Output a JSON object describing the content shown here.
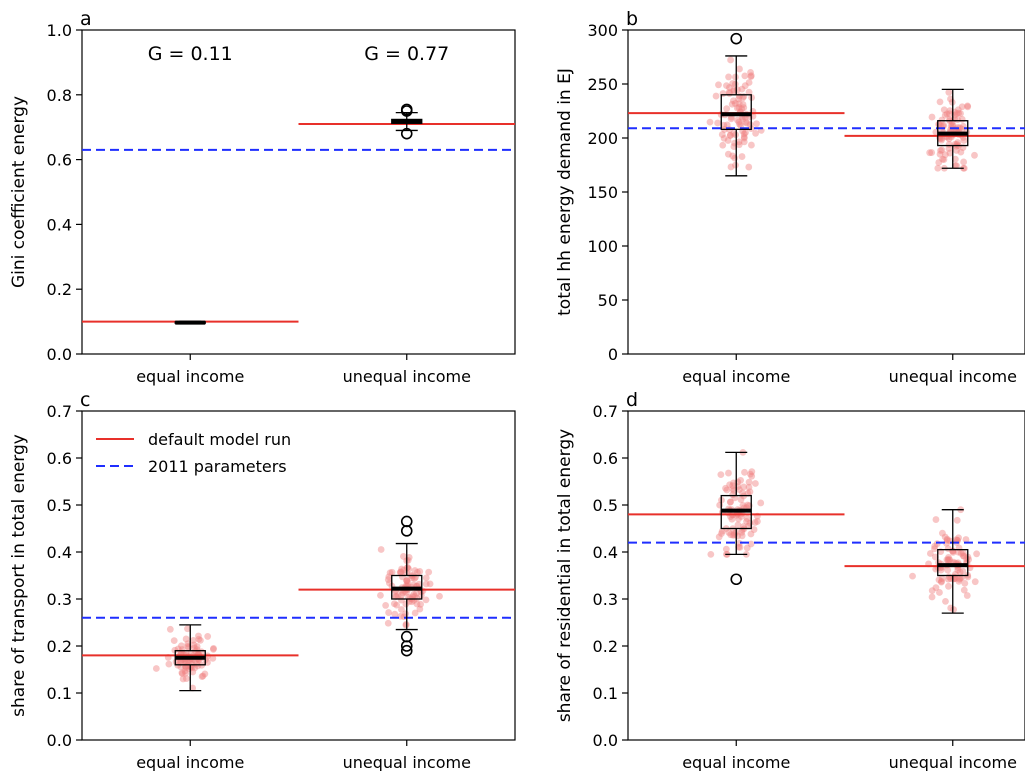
{
  "chart_data": [
    {
      "panel": "a",
      "type": "box",
      "categories": [
        "equal income",
        "unequal income"
      ],
      "ylabel": "Gini coefficient energy",
      "ylim": [
        0,
        1.0
      ],
      "yticks": [
        0.0,
        0.2,
        0.4,
        0.6,
        0.8,
        1.0
      ],
      "ytick_labels": [
        "0.0",
        "0.2",
        "0.4",
        "0.6",
        "0.8",
        "1.0"
      ],
      "annotations": [
        "G = 0.11",
        "G = 0.77"
      ],
      "default_run": [
        0.1,
        0.71
      ],
      "params_2011": 0.63,
      "boxes": [
        {
          "q1": 0.095,
          "median": 0.097,
          "q3": 0.099,
          "wlow": 0.093,
          "whigh": 0.101,
          "outliers": []
        },
        {
          "q1": 0.712,
          "median": 0.718,
          "q3": 0.724,
          "wlow": 0.69,
          "whigh": 0.745,
          "outliers": [
            0.68,
            0.75,
            0.755
          ]
        }
      ],
      "show_points": false,
      "colors": {
        "default": "#e8302a",
        "params2011": "#1f2eff",
        "points": "#f08080"
      }
    },
    {
      "panel": "b",
      "type": "box",
      "categories": [
        "equal income",
        "unequal income"
      ],
      "ylabel": "total hh energy demand in EJ",
      "ylim": [
        0,
        300
      ],
      "yticks": [
        0,
        50,
        100,
        150,
        200,
        250,
        300
      ],
      "ytick_labels": [
        "0",
        "50",
        "100",
        "150",
        "200",
        "250",
        "300"
      ],
      "annotations": [],
      "default_run": [
        223,
        202
      ],
      "params_2011": 209,
      "boxes": [
        {
          "q1": 208,
          "median": 222,
          "q3": 240,
          "wlow": 165,
          "whigh": 276,
          "outliers": [
            292
          ]
        },
        {
          "q1": 193,
          "median": 204,
          "q3": 216,
          "wlow": 172,
          "whigh": 245,
          "outliers": []
        }
      ],
      "show_points": true,
      "colors": {
        "default": "#e8302a",
        "params2011": "#1f2eff",
        "points": "#f08080"
      }
    },
    {
      "panel": "c",
      "type": "box",
      "categories": [
        "equal income",
        "unequal income"
      ],
      "ylabel": "share of transport in total energy",
      "ylim": [
        0,
        0.7
      ],
      "yticks": [
        0.0,
        0.1,
        0.2,
        0.3,
        0.4,
        0.5,
        0.6,
        0.7
      ],
      "ytick_labels": [
        "0.0",
        "0.1",
        "0.2",
        "0.3",
        "0.4",
        "0.5",
        "0.6",
        "0.7"
      ],
      "annotations": [],
      "legend": {
        "placement": "upper-left",
        "entries": [
          "default model run",
          "2011 parameters"
        ]
      },
      "default_run": [
        0.18,
        0.32
      ],
      "params_2011": 0.26,
      "boxes": [
        {
          "q1": 0.16,
          "median": 0.175,
          "q3": 0.19,
          "wlow": 0.105,
          "whigh": 0.245,
          "outliers": []
        },
        {
          "q1": 0.3,
          "median": 0.322,
          "q3": 0.35,
          "wlow": 0.235,
          "whigh": 0.418,
          "outliers": [
            0.19,
            0.2,
            0.22,
            0.445,
            0.465
          ]
        }
      ],
      "show_points": true,
      "colors": {
        "default": "#e8302a",
        "params2011": "#1f2eff",
        "points": "#f08080"
      }
    },
    {
      "panel": "d",
      "type": "box",
      "categories": [
        "equal income",
        "unequal income"
      ],
      "ylabel": "share of residential in total energy",
      "ylim": [
        0,
        0.7
      ],
      "yticks": [
        0.0,
        0.1,
        0.2,
        0.3,
        0.4,
        0.5,
        0.6,
        0.7
      ],
      "ytick_labels": [
        "0.0",
        "0.1",
        "0.2",
        "0.3",
        "0.4",
        "0.5",
        "0.6",
        "0.7"
      ],
      "annotations": [],
      "default_run": [
        0.48,
        0.37
      ],
      "params_2011": 0.42,
      "boxes": [
        {
          "q1": 0.45,
          "median": 0.488,
          "q3": 0.52,
          "wlow": 0.395,
          "whigh": 0.612,
          "outliers": [
            0.342
          ]
        },
        {
          "q1": 0.35,
          "median": 0.372,
          "q3": 0.405,
          "wlow": 0.27,
          "whigh": 0.49,
          "outliers": []
        }
      ],
      "show_points": true,
      "colors": {
        "default": "#e8302a",
        "params2011": "#1f2eff",
        "points": "#f08080"
      }
    }
  ]
}
